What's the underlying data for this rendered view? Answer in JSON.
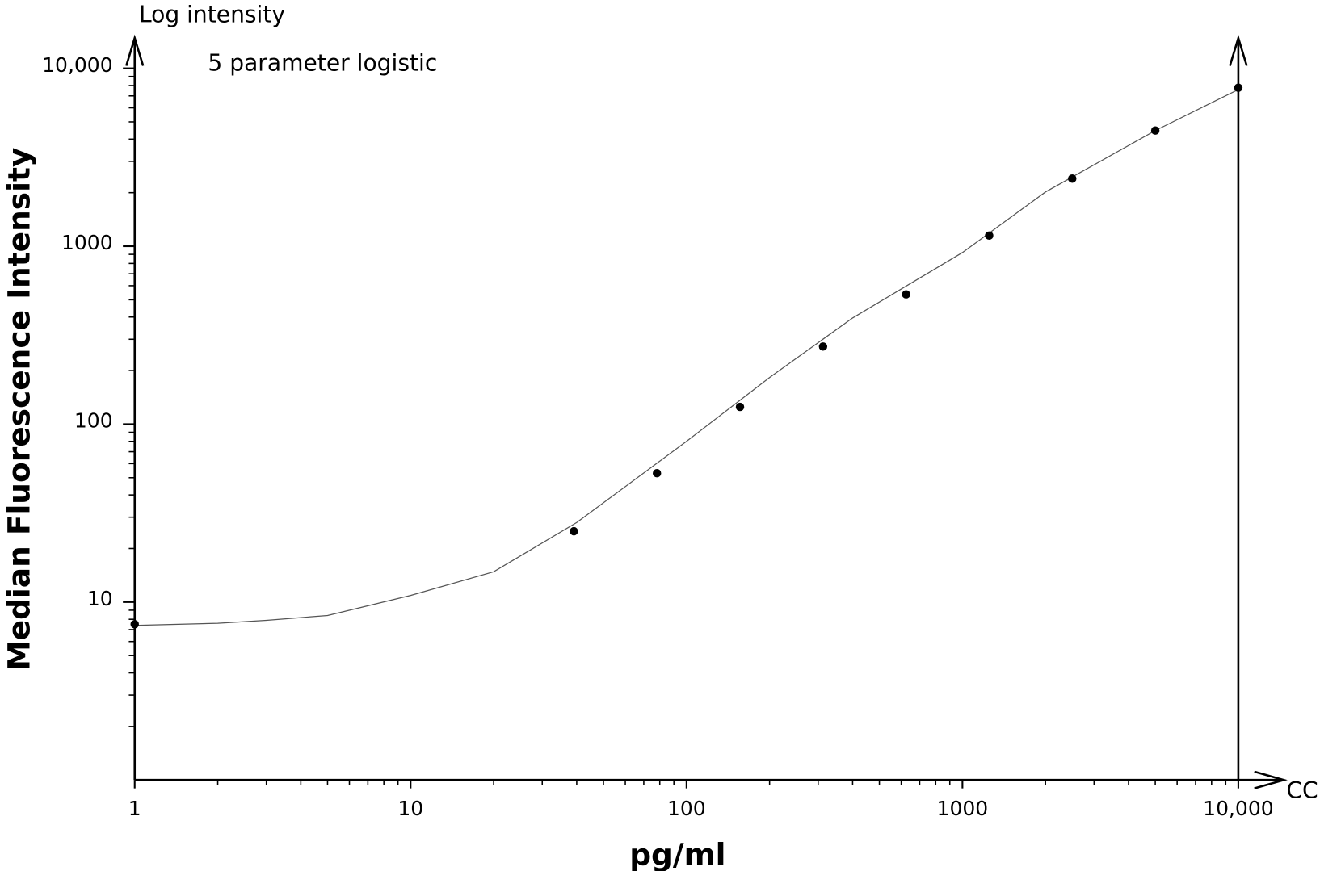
{
  "chart_data": {
    "type": "scatter",
    "title": "5 parameter logistic",
    "y_axis_caption": "Log intensity",
    "xlabel": "pg/ml",
    "ylabel": "Median Fluorescence Intensity",
    "x_axis_end_label": "CC",
    "xscale": "log",
    "yscale": "log",
    "xlim": [
      1,
      10000
    ],
    "ylim": [
      1,
      10000
    ],
    "xticks": [
      1,
      10,
      100,
      1000,
      {
        "value": 10000,
        "label": "10,000"
      }
    ],
    "yticks": [
      10,
      100,
      1000,
      {
        "value": 10000,
        "label": "10,000"
      }
    ],
    "xminorticks": [
      2,
      3,
      4,
      5,
      6,
      7,
      8,
      9,
      20,
      30,
      40,
      50,
      60,
      70,
      80,
      90,
      200,
      300,
      400,
      500,
      600,
      700,
      800,
      900,
      2000,
      3000,
      4000,
      5000,
      6000,
      7000,
      8000,
      9000
    ],
    "yminorticks": [
      2,
      3,
      4,
      5,
      6,
      7,
      8,
      9,
      20,
      30,
      40,
      50,
      60,
      70,
      80,
      90,
      200,
      300,
      400,
      500,
      600,
      700,
      800,
      900,
      2000,
      3000,
      4000,
      5000,
      6000,
      7000,
      8000,
      9000
    ],
    "series": [
      {
        "mode": "markers",
        "color": "#000000",
        "x": [
          1,
          39.0625,
          78.125,
          156.25,
          312.5,
          625,
          1250,
          2500,
          5000,
          10000
        ],
        "values": [
          7.5,
          25,
          53,
          125,
          273,
          536,
          1148,
          2400,
          4470,
          7780
        ]
      },
      {
        "mode": "line",
        "color": "#555555",
        "x": [
          1,
          2,
          3,
          5,
          10,
          20,
          40,
          100,
          200,
          400,
          1000,
          2000,
          5000,
          10000
        ],
        "values": [
          7.4,
          7.6,
          7.9,
          8.4,
          10.9,
          14.8,
          28,
          80,
          183,
          395,
          922,
          2018,
          4467,
          7600
        ]
      }
    ]
  }
}
